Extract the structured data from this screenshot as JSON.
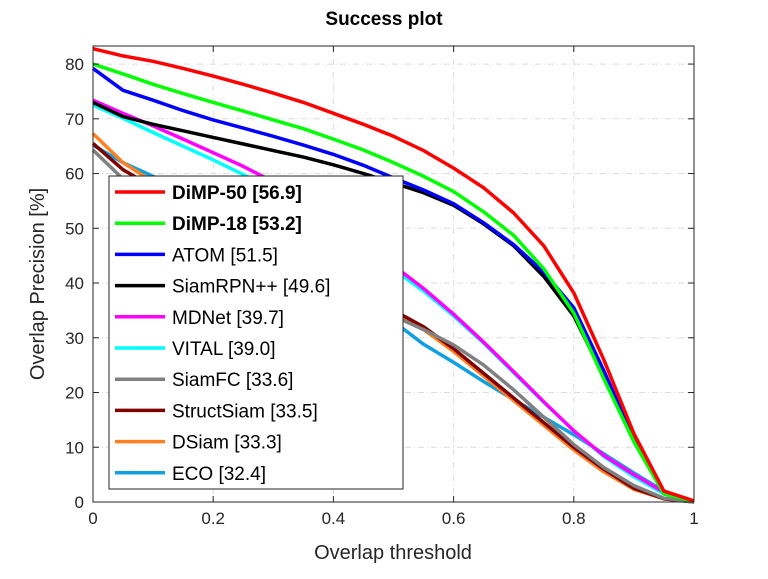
{
  "chart_data": {
    "type": "line",
    "title": "Success plot",
    "xlabel": "Overlap threshold",
    "ylabel": "Overlap Precision [%]",
    "xlim": [
      0,
      1
    ],
    "ylim": [
      0,
      83.3
    ],
    "grid": true,
    "legend_placement": "lower-left",
    "xticks": [
      "0",
      "0.2",
      "0.4",
      "0.6",
      "0.8",
      "1"
    ],
    "xtick_values": [
      0,
      0.2,
      0.4,
      0.6,
      0.8,
      1
    ],
    "yticks": [
      "0",
      "10",
      "20",
      "30",
      "40",
      "50",
      "60",
      "70",
      "80"
    ],
    "ytick_values": [
      0,
      10,
      20,
      30,
      40,
      50,
      60,
      70,
      80
    ],
    "x": [
      0,
      0.05,
      0.1,
      0.15,
      0.2,
      0.25,
      0.3,
      0.35,
      0.4,
      0.45,
      0.5,
      0.55,
      0.6,
      0.65,
      0.7,
      0.75,
      0.8,
      0.85,
      0.9,
      0.95,
      1
    ],
    "series": [
      {
        "name": "DiMP-50 [56.9]",
        "color": "#ff0000",
        "bold": true,
        "values": [
          82.8,
          81.5,
          80.5,
          79.2,
          77.8,
          76.3,
          74.7,
          73,
          71,
          69,
          66.8,
          64.2,
          61,
          57.4,
          52.8,
          46.8,
          38.2,
          26,
          12.5,
          2,
          0.2
        ]
      },
      {
        "name": "DiMP-18 [53.2]",
        "color": "#00ff00",
        "bold": true,
        "values": [
          80,
          78.2,
          76.3,
          74.6,
          73,
          71.4,
          69.8,
          68.2,
          66.3,
          64.3,
          62,
          59.5,
          56.7,
          53,
          48.7,
          42.6,
          34.5,
          22.5,
          11,
          1.5,
          0.1
        ]
      },
      {
        "name": "ATOM [51.5]",
        "color": "#0000ff",
        "bold": false,
        "values": [
          79.2,
          75.2,
          73.4,
          71.5,
          69.8,
          68.3,
          66.8,
          65.2,
          63.5,
          61.5,
          59.2,
          57,
          54.5,
          51,
          47,
          42,
          35.5,
          24,
          11.5,
          1.7,
          0.1
        ]
      },
      {
        "name": "SiamRPN++ [49.6]",
        "color": "#000000",
        "bold": false,
        "values": [
          73,
          70.4,
          69,
          67.8,
          66.6,
          65.4,
          64.2,
          63,
          61.6,
          60,
          58.3,
          56.5,
          54.2,
          50.8,
          46.8,
          41.2,
          34,
          23,
          11.5,
          1.5,
          0.1
        ]
      },
      {
        "name": "MDNet [39.7]",
        "color": "#ff00ff",
        "bold": false,
        "values": [
          73.4,
          71,
          68.7,
          66.3,
          63.8,
          61.3,
          58.5,
          55.4,
          52,
          47.5,
          43.2,
          39,
          34.3,
          29.2,
          23.8,
          18.3,
          13,
          8.5,
          5,
          1.8,
          0.1
        ]
      },
      {
        "name": "VITAL [39.0]",
        "color": "#00ffff",
        "bold": false,
        "values": [
          72.5,
          70.1,
          67.5,
          65,
          62.5,
          59.8,
          57,
          54,
          50.5,
          46.5,
          42.5,
          38.5,
          34,
          29,
          23.6,
          18.2,
          13,
          8.3,
          4.6,
          1.5,
          0.1
        ]
      },
      {
        "name": "SiamFC [33.6]",
        "color": "#808080",
        "bold": false,
        "values": [
          64.3,
          59,
          56,
          52.8,
          49.3,
          46.2,
          43,
          40.5,
          38.5,
          36.3,
          34,
          31.5,
          28.7,
          25,
          20.5,
          15.5,
          10.5,
          6.3,
          3,
          0.7,
          0
        ]
      },
      {
        "name": "StructSiam [33.5]",
        "color": "#800000",
        "bold": false,
        "values": [
          65.5,
          60.7,
          57.5,
          54.5,
          51.5,
          48.5,
          45.5,
          42.5,
          40,
          37.5,
          35,
          32,
          28,
          23.5,
          19,
          14.5,
          10,
          6,
          2.5,
          0.6,
          0
        ]
      },
      {
        "name": "DSiam [33.3]",
        "color": "#ff8020",
        "bold": false,
        "values": [
          67.3,
          62,
          58.5,
          55.3,
          52,
          48.8,
          45.7,
          42.6,
          40,
          37.3,
          34.7,
          31.5,
          27.5,
          23,
          18.5,
          14,
          9.5,
          5.5,
          2.3,
          0.6,
          0
        ]
      },
      {
        "name": "ECO [32.4]",
        "color": "#10a0e0",
        "bold": false,
        "values": [
          65.2,
          62,
          59.5,
          57,
          54.3,
          51.5,
          48.5,
          45,
          41.5,
          36.5,
          33,
          28.8,
          25.5,
          22,
          18.7,
          15.5,
          12.3,
          8.8,
          5.3,
          2,
          0
        ]
      }
    ]
  }
}
